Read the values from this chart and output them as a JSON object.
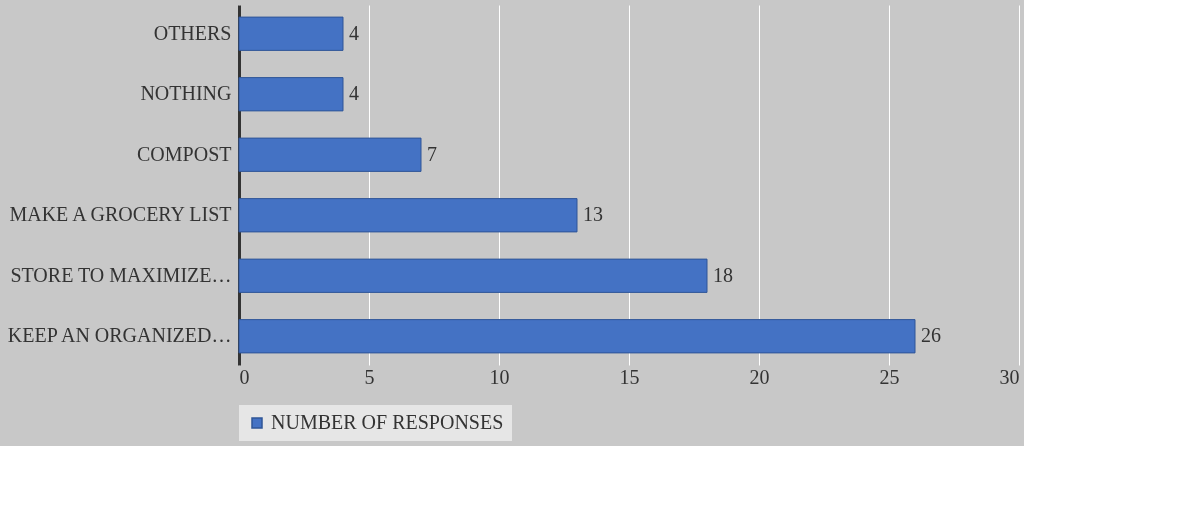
{
  "chart_data": {
    "type": "bar",
    "orientation": "horizontal",
    "categories": [
      "OTHERS",
      "NOTHING",
      "COMPOST",
      "MAKE A GROCERY LIST",
      "STORE TO MAXIMIZE…",
      "KEEP AN ORGANIZED…"
    ],
    "series": [
      {
        "name": "NUMBER OF RESPONSES",
        "color": "#4472c4",
        "values": [
          4,
          4,
          7,
          13,
          18,
          26
        ]
      }
    ],
    "xlim": [
      0,
      30
    ],
    "xticks": [
      0,
      5,
      10,
      15,
      20,
      25,
      30
    ],
    "grid": "x",
    "legend": "bottom",
    "data_labels": true
  }
}
